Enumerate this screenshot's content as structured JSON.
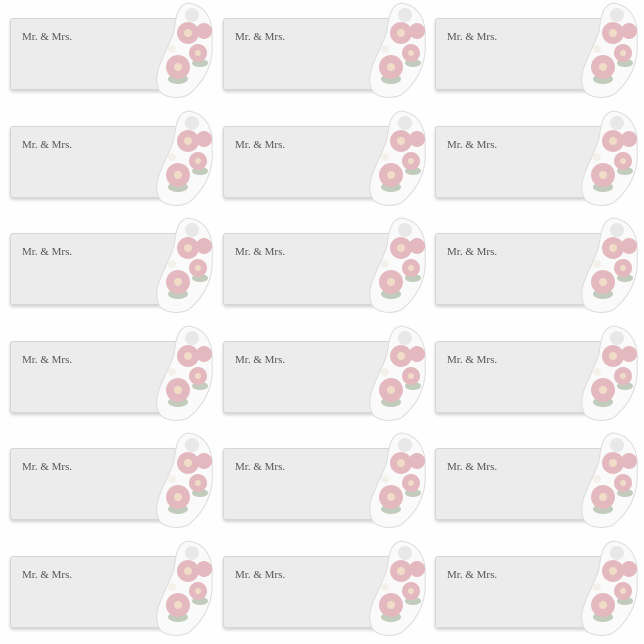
{
  "sheet": {
    "label_text": "Mr. & Mrs.",
    "columns": 3,
    "rows": 6,
    "colors": {
      "card": "#ececed",
      "rose": "#e3b9bf",
      "rose_center": "#f1dcc8",
      "leaf": "#a9b8a2",
      "text": "#555555"
    },
    "labels": [
      {
        "text": "Mr. & Mrs."
      },
      {
        "text": "Mr. & Mrs."
      },
      {
        "text": "Mr. & Mrs."
      },
      {
        "text": "Mr. & Mrs."
      },
      {
        "text": "Mr. & Mrs."
      },
      {
        "text": "Mr. & Mrs."
      },
      {
        "text": "Mr. & Mrs."
      },
      {
        "text": "Mr. & Mrs."
      },
      {
        "text": "Mr. & Mrs."
      },
      {
        "text": "Mr. & Mrs."
      },
      {
        "text": "Mr. & Mrs."
      },
      {
        "text": "Mr. & Mrs."
      },
      {
        "text": "Mr. & Mrs."
      },
      {
        "text": "Mr. & Mrs."
      },
      {
        "text": "Mr. & Mrs."
      },
      {
        "text": "Mr. & Mrs."
      },
      {
        "text": "Mr. & Mrs."
      },
      {
        "text": "Mr. & Mrs."
      }
    ]
  }
}
